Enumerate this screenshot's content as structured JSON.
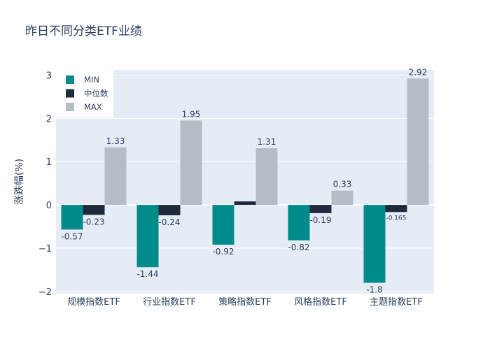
{
  "chart_data": {
    "type": "bar",
    "title": "昨日不同分类ETF业绩",
    "xlabel": "",
    "ylabel": "涨跌幅(%)",
    "ylim": [
      -2.05,
      3.12
    ],
    "yticks": [
      -2,
      -1,
      0,
      1,
      2,
      3
    ],
    "ytick_labels": [
      "−2",
      "−1",
      "0",
      "1",
      "2",
      "3"
    ],
    "categories": [
      "规模指数ETF",
      "行业指数ETF",
      "策略指数ETF",
      "风格指数ETF",
      "主题指数ETF"
    ],
    "series": [
      {
        "name": "MIN",
        "color": "#008b8b",
        "values": [
          -0.57,
          -1.44,
          -0.92,
          -0.82,
          -1.8
        ],
        "labels": [
          "-0.57",
          "-1.44",
          "-0.92",
          "-0.82",
          "-1.8"
        ]
      },
      {
        "name": "中位数",
        "color": "#1f2a3c",
        "values": [
          -0.23,
          -0.24,
          0.08,
          -0.19,
          -0.165
        ],
        "labels": [
          "-0.23",
          "-0.24",
          "",
          "-0.19",
          "-0.165"
        ]
      },
      {
        "name": "MAX",
        "color": "#b6bcc4",
        "values": [
          1.33,
          1.95,
          1.31,
          0.33,
          2.92
        ],
        "labels": [
          "1.33",
          "1.95",
          "1.31",
          "0.33",
          "2.92"
        ]
      }
    ],
    "legend_position": "top-left",
    "grid": true
  }
}
